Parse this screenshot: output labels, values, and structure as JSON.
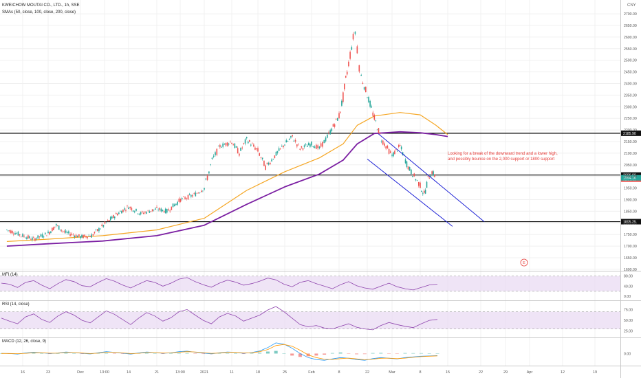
{
  "header": {
    "symbol": "KWEICHOW MOUTAI CO., LTD., 1h, SSE",
    "sma_legend": "SMAs (50, close, 100, close, 200, close)",
    "currency": "CNY"
  },
  "annotation": {
    "line1": "Looking for a break of the downward trend and a lower high,",
    "line2": "and possibly bounce on the 2,000 support or 1800 support"
  },
  "colors": {
    "up": "#26a69a",
    "down": "#ef5350",
    "sma100": "#f5a623",
    "sma200": "#7b1fa2",
    "channel": "#1e22d6",
    "hline": "#000000",
    "panel_band": "#e8d9f2",
    "osc": "#8e44ad",
    "macd": "#2196f3",
    "signal": "#ff9800",
    "annotation": "#e53935"
  },
  "icons": {
    "event_marker": "earnings-marker-icon"
  },
  "chart_data": [
    {
      "type": "candlestick",
      "series": [
        {
          "name": "SMA 100",
          "color": "#f5a623"
        },
        {
          "name": "SMA 200",
          "color": "#7b1fa2"
        }
      ],
      "y_ticks": [
        "2700.00",
        "2650.00",
        "2600.00",
        "2550.00",
        "2500.00",
        "2450.00",
        "2400.00",
        "2350.00",
        "2300.00",
        "2250.00",
        "2200.00",
        "2150.00",
        "2100.00",
        "2050.00",
        "2000.00",
        "1950.00",
        "1900.00",
        "1850.00",
        "1800.00",
        "1750.00",
        "1700.00",
        "1650.00",
        "1600.00"
      ],
      "x_ticks": [
        "16",
        "23",
        "Dec",
        "13:00",
        "14",
        "21",
        "13:00",
        "2021",
        "11",
        "18",
        "25",
        "Feb",
        "8",
        "22",
        "Mar",
        "8",
        "15",
        "22",
        "29",
        "Apr",
        "12",
        "19"
      ],
      "ylim": [
        1585,
        2715
      ],
      "horizontal_lines": [
        {
          "value": 2185.9,
          "label": "2185.90"
        },
        {
          "value": 2006.0,
          "label": "2006.00"
        },
        {
          "value": 1805.25,
          "label": "1805.25"
        }
      ],
      "price_labels": [
        {
          "label": "2006.00",
          "sub": "01:00:00"
        },
        {
          "label": "1994.16"
        }
      ],
      "channel": [
        {
          "from": [
            "2021-02-25",
            2185
          ],
          "to": [
            "2021-03-23",
            1805
          ]
        },
        {
          "from": [
            "2021-02-22",
            2075
          ],
          "to": [
            "2021-03-16",
            1785
          ]
        }
      ],
      "price_path": [
        [
          "2020-11-09",
          1770
        ],
        [
          "2020-11-12",
          1760
        ],
        [
          "2020-11-16",
          1745
        ],
        [
          "2020-11-19",
          1730
        ],
        [
          "2020-11-23",
          1755
        ],
        [
          "2020-11-25",
          1790
        ],
        [
          "2020-11-27",
          1760
        ],
        [
          "2020-12-01",
          1740
        ],
        [
          "2020-12-04",
          1745
        ],
        [
          "2020-12-08",
          1800
        ],
        [
          "2020-12-11",
          1840
        ],
        [
          "2020-12-14",
          1870
        ],
        [
          "2020-12-17",
          1840
        ],
        [
          "2020-12-21",
          1860
        ],
        [
          "2020-12-24",
          1850
        ],
        [
          "2020-12-28",
          1900
        ],
        [
          "2021-01-01",
          1920
        ],
        [
          "2021-01-04",
          1950
        ],
        [
          "2021-01-06",
          2070
        ],
        [
          "2021-01-08",
          2130
        ],
        [
          "2021-01-11",
          2150
        ],
        [
          "2021-01-13",
          2100
        ],
        [
          "2021-01-15",
          2160
        ],
        [
          "2021-01-18",
          2110
        ],
        [
          "2021-01-20",
          2040
        ],
        [
          "2021-01-22",
          2080
        ],
        [
          "2021-01-25",
          2140
        ],
        [
          "2021-01-27",
          2170
        ],
        [
          "2021-01-29",
          2120
        ],
        [
          "2021-02-01",
          2140
        ],
        [
          "2021-02-03",
          2120
        ],
        [
          "2021-02-05",
          2170
        ],
        [
          "2021-02-08",
          2260
        ],
        [
          "2021-02-10",
          2340
        ],
        [
          "2021-02-12",
          2450
        ],
        [
          "2021-02-15",
          2600
        ],
        [
          "2021-02-16",
          2620
        ],
        [
          "2021-02-17",
          2560
        ],
        [
          "2021-02-18",
          2480
        ],
        [
          "2021-02-19",
          2430
        ],
        [
          "2021-02-22",
          2350
        ],
        [
          "2021-02-24",
          2250
        ],
        [
          "2021-02-26",
          2160
        ],
        [
          "2021-03-01",
          2090
        ],
        [
          "2021-03-03",
          2130
        ],
        [
          "2021-03-05",
          2040
        ],
        [
          "2021-03-08",
          1960
        ],
        [
          "2021-03-09",
          1920
        ],
        [
          "2021-03-10",
          1990
        ],
        [
          "2021-03-11",
          2020
        ],
        [
          "2021-03-12",
          1994
        ]
      ],
      "sma100": [
        [
          "2020-11-09",
          1720
        ],
        [
          "2020-11-23",
          1730
        ],
        [
          "2020-12-07",
          1745
        ],
        [
          "2020-12-21",
          1770
        ],
        [
          "2021-01-04",
          1820
        ],
        [
          "2021-01-15",
          1940
        ],
        [
          "2021-01-25",
          2020
        ],
        [
          "2021-02-03",
          2080
        ],
        [
          "2021-02-10",
          2140
        ],
        [
          "2021-02-17",
          2220
        ],
        [
          "2021-02-24",
          2260
        ],
        [
          "2021-03-03",
          2275
        ],
        [
          "2021-03-08",
          2265
        ],
        [
          "2021-03-12",
          2220
        ],
        [
          "2021-03-15",
          2180
        ]
      ],
      "sma200": [
        [
          "2020-11-09",
          1700
        ],
        [
          "2020-11-23",
          1710
        ],
        [
          "2020-12-07",
          1722
        ],
        [
          "2020-12-21",
          1745
        ],
        [
          "2021-01-04",
          1790
        ],
        [
          "2021-01-15",
          1880
        ],
        [
          "2021-01-25",
          1955
        ],
        [
          "2021-02-03",
          2010
        ],
        [
          "2021-02-10",
          2070
        ],
        [
          "2021-02-17",
          2140
        ],
        [
          "2021-02-24",
          2185
        ],
        [
          "2021-03-03",
          2192
        ],
        [
          "2021-03-08",
          2188
        ],
        [
          "2021-03-12",
          2180
        ],
        [
          "2021-03-15",
          2172
        ]
      ]
    },
    {
      "type": "line",
      "title": "MFI (14)",
      "y_ticks": [
        "80.00",
        "40.00",
        "0.00"
      ],
      "band": [
        20,
        80
      ],
      "ylim": [
        -5,
        90
      ],
      "series": [
        {
          "name": "MFI",
          "values": [
            52,
            48,
            35,
            55,
            62,
            44,
            30,
            50,
            66,
            58,
            42,
            38,
            55,
            70,
            60,
            45,
            33,
            48,
            62,
            55,
            40,
            52,
            68,
            74,
            58,
            46,
            36,
            52,
            64,
            56,
            44,
            50,
            60,
            72,
            65,
            48,
            38,
            55,
            62,
            50,
            40,
            30,
            46,
            58,
            42,
            33,
            28,
            40,
            52,
            38,
            30,
            25,
            35,
            45,
            48
          ]
        }
      ]
    },
    {
      "type": "line",
      "title": "RSI (14, close)",
      "y_ticks": [
        "75.00",
        "50.00",
        "25.00"
      ],
      "band": [
        30,
        70
      ],
      "ylim": [
        15,
        90
      ],
      "series": [
        {
          "name": "RSI",
          "values": [
            55,
            48,
            42,
            58,
            65,
            52,
            45,
            60,
            70,
            62,
            50,
            44,
            58,
            72,
            64,
            52,
            40,
            55,
            68,
            60,
            48,
            56,
            70,
            75,
            62,
            50,
            42,
            58,
            66,
            60,
            48,
            55,
            62,
            74,
            82,
            70,
            55,
            40,
            35,
            38,
            32,
            30,
            36,
            42,
            34,
            30,
            28,
            38,
            45,
            40,
            36,
            33,
            42,
            50,
            52
          ]
        }
      ]
    },
    {
      "type": "line",
      "title": "MACD (12, 26, close, 9)",
      "y_ticks": [
        "0.00"
      ],
      "ylim": [
        -80,
        100
      ],
      "series": [
        {
          "name": "MACD",
          "values": [
            2,
            0,
            -4,
            5,
            10,
            6,
            0,
            4,
            12,
            8,
            2,
            -3,
            6,
            14,
            9,
            3,
            -4,
            5,
            12,
            8,
            2,
            6,
            14,
            18,
            10,
            4,
            -2,
            6,
            12,
            9,
            2,
            8,
            20,
            45,
            80,
            70,
            40,
            0,
            -30,
            -45,
            -50,
            -40,
            -30,
            -35,
            -45,
            -50,
            -38,
            -30,
            -35,
            -40,
            -30,
            -25,
            -20,
            -18,
            -15
          ]
        },
        {
          "name": "Signal",
          "values": [
            1,
            1,
            -1,
            2,
            6,
            6,
            3,
            3,
            8,
            8,
            4,
            0,
            3,
            10,
            10,
            5,
            0,
            2,
            8,
            8,
            4,
            5,
            10,
            14,
            12,
            7,
            2,
            4,
            9,
            9,
            5,
            6,
            14,
            30,
            60,
            68,
            55,
            25,
            -10,
            -30,
            -42,
            -44,
            -38,
            -34,
            -40,
            -46,
            -42,
            -35,
            -34,
            -38,
            -34,
            -28,
            -23,
            -20,
            -17
          ]
        }
      ]
    }
  ]
}
